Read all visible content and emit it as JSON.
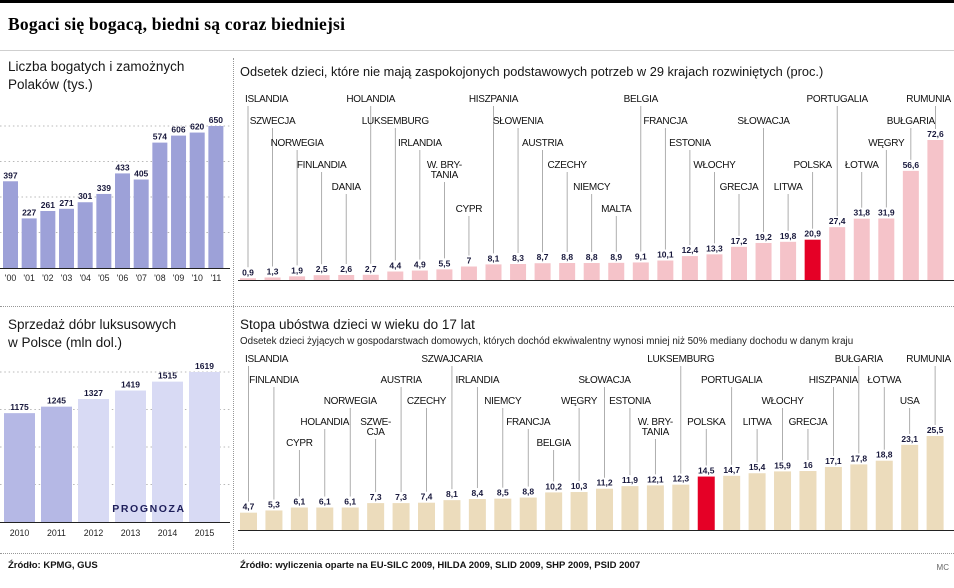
{
  "page": {
    "title": "Bogaci się bogacą, biedni są coraz biedniejsi",
    "credit": "MC"
  },
  "sources": {
    "left": "Źródło: KPMG, GUS",
    "right": "Źródło: wyliczenia oparte na EU-SILC 2009, HILDA 2009, SLID 2009, SHP 2009, PSID 2007"
  },
  "colors": {
    "left_bar": "#9da1d8",
    "luxury_bar": "#b5b8e5",
    "luxury_forecast_bar": "#d8daf4",
    "pink_bar": "#f5c3c9",
    "beige_bar": "#ecdcbc",
    "highlight_red": "#e50026"
  },
  "chart_data": [
    {
      "id": "rich-poles",
      "type": "bar",
      "title": "Liczba bogatych i zamożnych Polaków (tys.)",
      "title_line1": "Liczba bogatych i zamożnych",
      "title_line2": "Polaków  (tys.)",
      "categories": [
        "'00",
        "'01",
        "'02",
        "'03",
        "'04",
        "'05",
        "'06",
        "'07",
        "'08",
        "'09",
        "'10",
        "'11"
      ],
      "values": [
        397,
        227,
        261,
        271,
        301,
        339,
        433,
        405,
        574,
        606,
        620,
        650
      ],
      "bar_color": "#9da1d8",
      "grid": "dotted-horizontal",
      "legend": "none"
    },
    {
      "id": "child-deprivation",
      "type": "bar",
      "title": "Odsetek dzieci, które nie mają zaspokojonych podstawowych potrzeb w 29 krajach rozwiniętych (proc.)",
      "bar_color": "#f5c3c9",
      "highlight_color": "#e50026",
      "highlight_country": "POLSKA",
      "legend": "none",
      "countries": [
        {
          "name": "ISLANDIA",
          "value": 0.9,
          "label": "0,9",
          "row": 0
        },
        {
          "name": "SZWECJA",
          "value": 1.3,
          "label": "1,3",
          "row": 1
        },
        {
          "name": "NORWEGIA",
          "value": 1.9,
          "label": "1,9",
          "row": 2
        },
        {
          "name": "FINLANDIA",
          "value": 2.5,
          "label": "2,5",
          "row": 3
        },
        {
          "name": "DANIA",
          "value": 2.6,
          "label": "2,6",
          "row": 4
        },
        {
          "name": "HOLANDIA",
          "value": 2.7,
          "label": "2,7",
          "row": 0
        },
        {
          "name": "LUKSEMBURG",
          "value": 4.4,
          "label": "4,4",
          "row": 1
        },
        {
          "name": "IRLANDIA",
          "value": 4.9,
          "label": "4,9",
          "row": 2
        },
        {
          "name": "W. BRY-|TANIA",
          "value": 5.5,
          "label": "5,5",
          "row": 3
        },
        {
          "name": "CYPR",
          "value": 7,
          "label": "7",
          "row": 5
        },
        {
          "name": "HISZPANIA",
          "value": 8.1,
          "label": "8,1",
          "row": 0
        },
        {
          "name": "SŁOWENIA",
          "value": 8.3,
          "label": "8,3",
          "row": 1
        },
        {
          "name": "AUSTRIA",
          "value": 8.7,
          "label": "8,7",
          "row": 2
        },
        {
          "name": "CZECHY",
          "value": 8.8,
          "label": "8,8",
          "row": 3
        },
        {
          "name": "NIEMCY",
          "value": 8.8,
          "label": "8,8",
          "row": 4
        },
        {
          "name": "MALTA",
          "value": 8.9,
          "label": "8,9",
          "row": 5
        },
        {
          "name": "BELGIA",
          "value": 9.1,
          "label": "9,1",
          "row": 0
        },
        {
          "name": "FRANCJA",
          "value": 10.1,
          "label": "10,1",
          "row": 1
        },
        {
          "name": "ESTONIA",
          "value": 12.4,
          "label": "12,4",
          "row": 2
        },
        {
          "name": "WŁOCHY",
          "value": 13.3,
          "label": "13,3",
          "row": 3
        },
        {
          "name": "GRECJA",
          "value": 17.2,
          "label": "17,2",
          "row": 4
        },
        {
          "name": "SŁOWACJA",
          "value": 19.2,
          "label": "19,2",
          "row": 1
        },
        {
          "name": "LITWA",
          "value": 19.8,
          "label": "19,8",
          "row": 4
        },
        {
          "name": "POLSKA",
          "value": 20.9,
          "label": "20,9",
          "row": 3,
          "highlight": true
        },
        {
          "name": "PORTUGALIA",
          "value": 27.4,
          "label": "27,4",
          "row": 0
        },
        {
          "name": "ŁOTWA",
          "value": 31.8,
          "label": "31,8",
          "row": 3
        },
        {
          "name": "WĘGRY",
          "value": 31.9,
          "label": "31,9",
          "row": 2
        },
        {
          "name": "BUŁGARIA",
          "value": 56.6,
          "label": "56,6",
          "row": 1
        },
        {
          "name": "RUMUNIA",
          "value": 72.6,
          "label": "72,6",
          "row": 0
        }
      ]
    },
    {
      "id": "luxury-goods",
      "type": "bar",
      "title": "Sprzedaż dóbr luksusowych w Polsce (mln dol.)",
      "title_line1": "Sprzedaż dóbr luksusowych",
      "title_line2": "w Polsce (mln dol.)",
      "categories": [
        "2010",
        "2011",
        "2012",
        "2013",
        "2014",
        "2015"
      ],
      "values": [
        1175,
        1245,
        1327,
        1419,
        1515,
        1619
      ],
      "forecast_start_index": 2,
      "forecast_label": "PROGNOZA",
      "bar_color": "#b5b8e5",
      "forecast_color": "#d8daf4",
      "grid": "dotted-horizontal",
      "legend": "none"
    },
    {
      "id": "child-poverty",
      "type": "bar",
      "title": "Stopa ubóstwa dzieci w wieku do 17 lat",
      "subtitle": "Odsetek dzieci żyjących w gospodarstwach domowych, których dochód ekwiwalentny wynosi mniej niż 50% mediany dochodu w danym kraju",
      "bar_color": "#ecdcbc",
      "highlight_color": "#e50026",
      "highlight_country": "POLSKA",
      "legend": "none",
      "countries": [
        {
          "name": "ISLANDIA",
          "value": 4.7,
          "label": "4,7",
          "row": 0
        },
        {
          "name": "FINLANDIA",
          "value": 5.3,
          "label": "5,3",
          "row": 1
        },
        {
          "name": "CYPR",
          "value": 6.1,
          "label": "6,1",
          "row": 4
        },
        {
          "name": "HOLANDIA",
          "value": 6.1,
          "label": "6,1",
          "row": 3
        },
        {
          "name": "NORWEGIA",
          "value": 6.1,
          "label": "6,1",
          "row": 2
        },
        {
          "name": "SZWE-|CJA",
          "value": 7.3,
          "label": "7,3",
          "row": 3
        },
        {
          "name": "AUSTRIA",
          "value": 7.3,
          "label": "7,3",
          "row": 1
        },
        {
          "name": "CZECHY",
          "value": 7.4,
          "label": "7,4",
          "row": 2
        },
        {
          "name": "SZWAJCARIA",
          "value": 8.1,
          "label": "8,1",
          "row": 0
        },
        {
          "name": "IRLANDIA",
          "value": 8.4,
          "label": "8,4",
          "row": 1
        },
        {
          "name": "NIEMCY",
          "value": 8.5,
          "label": "8,5",
          "row": 2
        },
        {
          "name": "FRANCJA",
          "value": 8.8,
          "label": "8,8",
          "row": 3
        },
        {
          "name": "BELGIA",
          "value": 10.2,
          "label": "10,2",
          "row": 4
        },
        {
          "name": "WĘGRY",
          "value": 10.3,
          "label": "10,3",
          "row": 2
        },
        {
          "name": "SŁOWACJA",
          "value": 11.2,
          "label": "11,2",
          "row": 1
        },
        {
          "name": "ESTONIA",
          "value": 11.9,
          "label": "11,9",
          "row": 2
        },
        {
          "name": "W. BRY-|TANIA",
          "value": 12.1,
          "label": "12,1",
          "row": 3
        },
        {
          "name": "LUKSEMBURG",
          "value": 12.3,
          "label": "12,3",
          "row": 0
        },
        {
          "name": "POLSKA",
          "value": 14.5,
          "label": "14,5",
          "row": 3,
          "highlight": true
        },
        {
          "name": "PORTUGALIA",
          "value": 14.7,
          "label": "14,7",
          "row": 1
        },
        {
          "name": "LITWA",
          "value": 15.4,
          "label": "15,4",
          "row": 3
        },
        {
          "name": "WŁOCHY",
          "value": 15.9,
          "label": "15,9",
          "row": 2
        },
        {
          "name": "GRECJA",
          "value": 16,
          "label": "16",
          "row": 3
        },
        {
          "name": "HISZPANIA",
          "value": 17.1,
          "label": "17,1",
          "row": 1
        },
        {
          "name": "BUŁGARIA",
          "value": 17.8,
          "label": "17,8",
          "row": 0
        },
        {
          "name": "ŁOTWA",
          "value": 18.8,
          "label": "18,8",
          "row": 1
        },
        {
          "name": "USA",
          "value": 23.1,
          "label": "23,1",
          "row": 2
        },
        {
          "name": "RUMUNIA",
          "value": 25.5,
          "label": "25,5",
          "row": 0
        }
      ]
    }
  ]
}
